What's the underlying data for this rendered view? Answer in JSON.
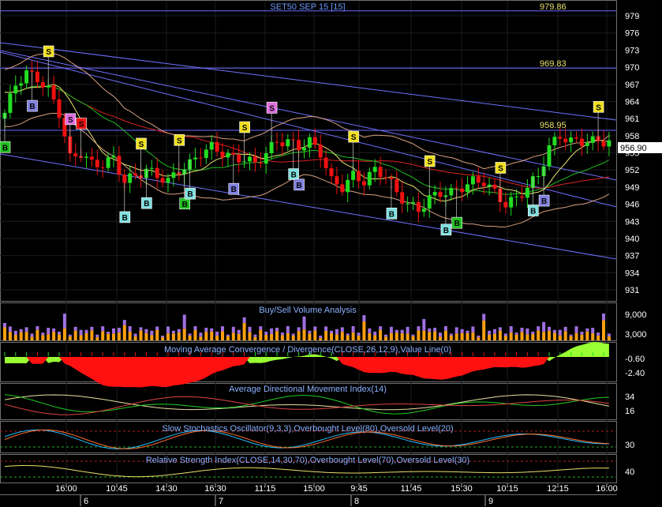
{
  "header": {
    "title": "SET50 SEP 15   [15]"
  },
  "price_panel": {
    "ylim": [
      929,
      981
    ],
    "ticks": [
      "979",
      "976",
      "973",
      "970",
      "967",
      "964",
      "961",
      "958",
      "955",
      "952",
      "949",
      "946",
      "943",
      "940",
      "937",
      "934",
      "931"
    ],
    "last_price": "956.90",
    "level_labels": [
      "979.86",
      "969.83",
      "958.95"
    ]
  },
  "panels": {
    "volume": {
      "title": "Buy/Sell Volume Analysis",
      "ticks": [
        "9,000",
        "3,000"
      ]
    },
    "macd": {
      "title": "Moving Average Convergence / Divergence(CLOSE,26,12,9),Value Line(0)",
      "ticks": [
        "-0.60",
        "-2.40"
      ]
    },
    "adx": {
      "title": "Average Directional Movement Index(14)",
      "ticks": [
        "34",
        "16"
      ]
    },
    "stoch": {
      "title": "Slow Stochastics Oscillator(9,3,3),Overbought Level(80),Oversold Level(20)",
      "ticks": [
        "30"
      ]
    },
    "rsi": {
      "title": "Relative Strength Index(CLOSE,14,30,70),Overbought Level(70),Oversold Level(30)",
      "ticks": [
        "40"
      ]
    }
  },
  "time_axis": {
    "times": [
      "16:00",
      "10:45",
      "14:30",
      "16:30",
      "11:15",
      "15:00",
      "9:45",
      "11:45",
      "15:30",
      "10:15",
      "12:15",
      "16:00"
    ],
    "days": [
      "6",
      "7",
      "8",
      "9"
    ]
  },
  "colors": {
    "background": "#000000",
    "up_candle": "#22dd22",
    "down_candle": "#ee1111",
    "level_line": "#6a6aff",
    "channel_line": "#7070ff",
    "ma_red": "#dd2222",
    "ma_green": "#22bb22",
    "ma_yellow": "#e8e06a",
    "band": "#d8a080",
    "macd_green": "#99ff33",
    "macd_red": "#ff1111",
    "volume_orange": "#ffa010",
    "volume_purple": "#a070e0",
    "signal_sell": "#f0e020",
    "signal_sell_pink": "#e070e0",
    "signal_buy": "#8080e0",
    "signal_buy_cyan": "#80e0e0",
    "signal_buy_green": "#20c020"
  },
  "chart_data": {
    "type": "candlestick",
    "title": "SET50 SEP 15   [15]",
    "x_index": [
      0,
      2,
      4,
      6,
      8,
      10,
      12,
      14,
      16,
      18,
      20,
      22,
      24,
      26,
      28,
      30,
      32,
      34,
      36,
      38,
      40,
      42,
      44,
      46,
      48,
      50,
      52,
      54,
      56,
      58,
      60,
      62,
      64,
      66,
      68,
      70,
      72,
      74,
      76,
      78,
      80,
      82,
      84,
      86,
      88,
      90,
      92,
      94,
      96,
      98,
      100,
      102,
      104,
      106
    ],
    "close": [
      962,
      967,
      969,
      968,
      966,
      962,
      954,
      955,
      953,
      953,
      954,
      950,
      951,
      952,
      951,
      950,
      952,
      953,
      955,
      956,
      955,
      954,
      954,
      953,
      955,
      957,
      957,
      956,
      957,
      955,
      950,
      949,
      951,
      950,
      952,
      951,
      948,
      946,
      945,
      947,
      948,
      948,
      949,
      950,
      950,
      948,
      946,
      947,
      949,
      951,
      956,
      958,
      957,
      957
    ],
    "signals": [
      {
        "i": 0,
        "type": "B",
        "side": "buy",
        "color": "signal_buy_green"
      },
      {
        "i": 5,
        "type": "B",
        "side": "buy",
        "color": "signal_buy"
      },
      {
        "i": 8,
        "type": "S",
        "side": "sell",
        "color": "signal_sell"
      },
      {
        "i": 12,
        "type": "S",
        "side": "sell",
        "color": "signal_sell_pink"
      },
      {
        "i": 14,
        "type": "S",
        "side": "sell",
        "color": "down_candle"
      },
      {
        "i": 22,
        "type": "B",
        "side": "buy",
        "color": "signal_buy_cyan"
      },
      {
        "i": 25,
        "type": "S",
        "side": "sell",
        "color": "signal_sell"
      },
      {
        "i": 26,
        "type": "B",
        "side": "buy",
        "color": "signal_buy_cyan"
      },
      {
        "i": 32,
        "type": "S",
        "side": "sell",
        "color": "signal_sell"
      },
      {
        "i": 33,
        "type": "B",
        "side": "buy",
        "color": "signal_buy_green"
      },
      {
        "i": 34,
        "type": "B",
        "side": "buy",
        "color": "signal_buy_cyan"
      },
      {
        "i": 42,
        "type": "B",
        "side": "buy",
        "color": "signal_buy"
      },
      {
        "i": 44,
        "type": "S",
        "side": "sell",
        "color": "signal_sell"
      },
      {
        "i": 49,
        "type": "S",
        "side": "sell",
        "color": "signal_sell_pink"
      },
      {
        "i": 53,
        "type": "B",
        "side": "buy",
        "color": "signal_buy_cyan"
      },
      {
        "i": 54,
        "type": "B",
        "side": "buy",
        "color": "signal_buy"
      },
      {
        "i": 64,
        "type": "S",
        "side": "sell",
        "color": "signal_sell"
      },
      {
        "i": 71,
        "type": "B",
        "side": "buy",
        "color": "signal_buy_cyan"
      },
      {
        "i": 78,
        "type": "S",
        "side": "sell",
        "color": "signal_sell"
      },
      {
        "i": 81,
        "type": "B",
        "side": "buy",
        "color": "signal_buy_cyan"
      },
      {
        "i": 83,
        "type": "B",
        "side": "buy",
        "color": "signal_buy_green"
      },
      {
        "i": 91,
        "type": "S",
        "side": "sell",
        "color": "signal_sell"
      },
      {
        "i": 97,
        "type": "B",
        "side": "buy",
        "color": "signal_buy_cyan"
      },
      {
        "i": 99,
        "type": "B",
        "side": "buy",
        "color": "signal_buy"
      },
      {
        "i": 109,
        "type": "S",
        "side": "sell",
        "color": "signal_sell"
      }
    ]
  }
}
